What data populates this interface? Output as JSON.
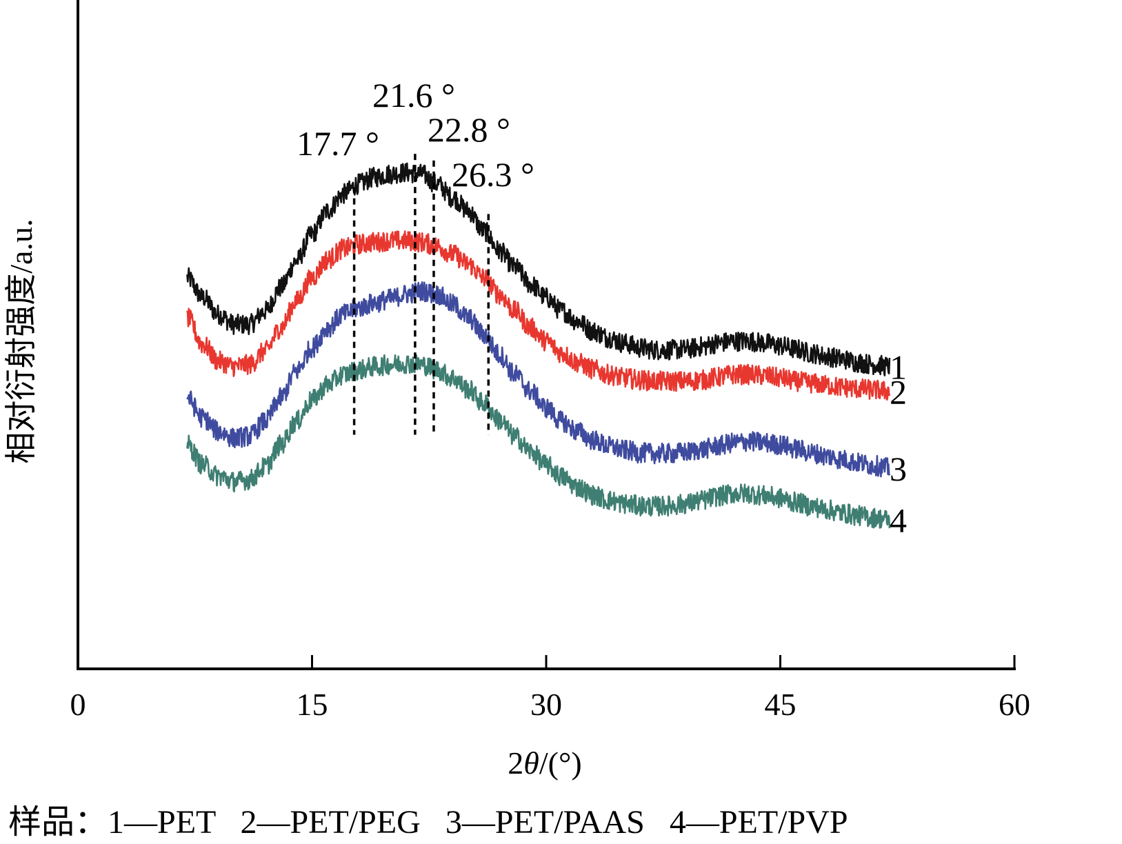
{
  "chart_data": {
    "type": "line",
    "xlabel": "2θ/(°)",
    "xlabel_parts": {
      "number": "2",
      "symbol": "θ",
      "unit": "/(°)"
    },
    "ylabel": "相对衍射强度/a.u.",
    "xlim": [
      0,
      60
    ],
    "xticks": [
      "0",
      "15",
      "30",
      "45",
      "60"
    ],
    "yticks": [],
    "grid": false,
    "legend": "caption-bottom",
    "peaks": [
      {
        "label": "17.7 °",
        "x": 17.7
      },
      {
        "label": "21.6 °",
        "x": 21.6
      },
      {
        "label": "22.8 °",
        "x": 22.8
      },
      {
        "label": "26.3 °",
        "x": 26.3
      }
    ],
    "series": [
      {
        "name": "1",
        "color": "#111111",
        "x": [
          7,
          8,
          9,
          10,
          11,
          12,
          13,
          14,
          15,
          16,
          17,
          18,
          19,
          20,
          21,
          22,
          23,
          24,
          25,
          26,
          27,
          28,
          29,
          30,
          31,
          32,
          33,
          34,
          35,
          36,
          37,
          38,
          39,
          40,
          41,
          42,
          43,
          44,
          45,
          46,
          47,
          48,
          49,
          50,
          51,
          52
        ],
        "y": [
          0.585,
          0.555,
          0.53,
          0.515,
          0.515,
          0.535,
          0.57,
          0.61,
          0.65,
          0.685,
          0.71,
          0.725,
          0.735,
          0.74,
          0.742,
          0.74,
          0.725,
          0.705,
          0.685,
          0.655,
          0.625,
          0.6,
          0.575,
          0.555,
          0.535,
          0.52,
          0.505,
          0.495,
          0.487,
          0.48,
          0.477,
          0.477,
          0.478,
          0.482,
          0.487,
          0.49,
          0.49,
          0.487,
          0.483,
          0.478,
          0.472,
          0.467,
          0.463,
          0.458,
          0.455,
          0.452
        ]
      },
      {
        "name": "2",
        "color": "#e8372f",
        "x": [
          7,
          8,
          9,
          10,
          11,
          12,
          13,
          14,
          15,
          16,
          17,
          18,
          19,
          20,
          21,
          22,
          23,
          24,
          25,
          26,
          27,
          28,
          29,
          30,
          31,
          32,
          33,
          34,
          35,
          36,
          37,
          38,
          39,
          40,
          41,
          42,
          43,
          44,
          45,
          46,
          47,
          48,
          49,
          50,
          51,
          52
        ],
        "y": [
          0.525,
          0.485,
          0.46,
          0.452,
          0.455,
          0.475,
          0.51,
          0.55,
          0.585,
          0.612,
          0.628,
          0.635,
          0.638,
          0.64,
          0.64,
          0.638,
          0.632,
          0.62,
          0.605,
          0.585,
          0.56,
          0.535,
          0.51,
          0.49,
          0.472,
          0.458,
          0.448,
          0.44,
          0.435,
          0.432,
          0.43,
          0.43,
          0.43,
          0.432,
          0.436,
          0.44,
          0.44,
          0.438,
          0.435,
          0.43,
          0.427,
          0.424,
          0.421,
          0.419,
          0.417,
          0.415
        ]
      },
      {
        "name": "3",
        "color": "#3f4b9e",
        "x": [
          7,
          8,
          9,
          10,
          11,
          12,
          13,
          14,
          15,
          16,
          17,
          18,
          19,
          20,
          21,
          22,
          23,
          24,
          25,
          26,
          27,
          28,
          29,
          30,
          31,
          32,
          33,
          34,
          35,
          36,
          37,
          38,
          39,
          40,
          41,
          42,
          43,
          44,
          45,
          46,
          47,
          48,
          49,
          50,
          51,
          52
        ],
        "y": [
          0.405,
          0.375,
          0.355,
          0.345,
          0.348,
          0.37,
          0.405,
          0.445,
          0.48,
          0.51,
          0.53,
          0.54,
          0.547,
          0.553,
          0.56,
          0.565,
          0.56,
          0.545,
          0.525,
          0.5,
          0.47,
          0.44,
          0.415,
          0.39,
          0.37,
          0.355,
          0.342,
          0.333,
          0.327,
          0.323,
          0.322,
          0.322,
          0.324,
          0.328,
          0.333,
          0.338,
          0.34,
          0.338,
          0.335,
          0.329,
          0.323,
          0.318,
          0.313,
          0.308,
          0.304,
          0.3
        ]
      },
      {
        "name": "4",
        "color": "#3f7e72",
        "x": [
          7,
          8,
          9,
          10,
          11,
          12,
          13,
          14,
          15,
          16,
          17,
          18,
          19,
          20,
          21,
          22,
          23,
          24,
          25,
          26,
          27,
          28,
          29,
          30,
          31,
          32,
          33,
          34,
          35,
          36,
          37,
          38,
          39,
          40,
          41,
          42,
          43,
          44,
          45,
          46,
          47,
          48,
          49,
          50,
          51,
          52
        ],
        "y": [
          0.335,
          0.305,
          0.288,
          0.28,
          0.283,
          0.302,
          0.335,
          0.37,
          0.402,
          0.425,
          0.44,
          0.447,
          0.452,
          0.455,
          0.457,
          0.455,
          0.447,
          0.435,
          0.418,
          0.397,
          0.372,
          0.347,
          0.325,
          0.305,
          0.287,
          0.272,
          0.26,
          0.252,
          0.247,
          0.244,
          0.243,
          0.244,
          0.247,
          0.252,
          0.258,
          0.262,
          0.262,
          0.259,
          0.255,
          0.249,
          0.243,
          0.238,
          0.233,
          0.229,
          0.226,
          0.223
        ]
      }
    ]
  },
  "caption": {
    "prefix": "样品：",
    "items": [
      "1—PET",
      "2—PET/PEG",
      "3—PET/PAAS",
      "4—PET/PVP"
    ]
  }
}
